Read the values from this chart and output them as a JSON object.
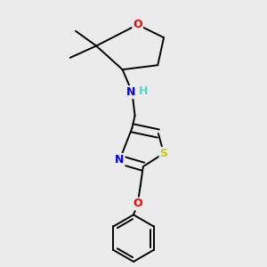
{
  "background_color": "#ebebeb",
  "bond_color": "#000000",
  "atom_colors": {
    "O": "#ff0000",
    "N": "#0000ff",
    "S": "#cccc00",
    "H": "#40e0d0",
    "C": "#000000"
  },
  "figsize": [
    3.0,
    3.0
  ],
  "dpi": 100
}
